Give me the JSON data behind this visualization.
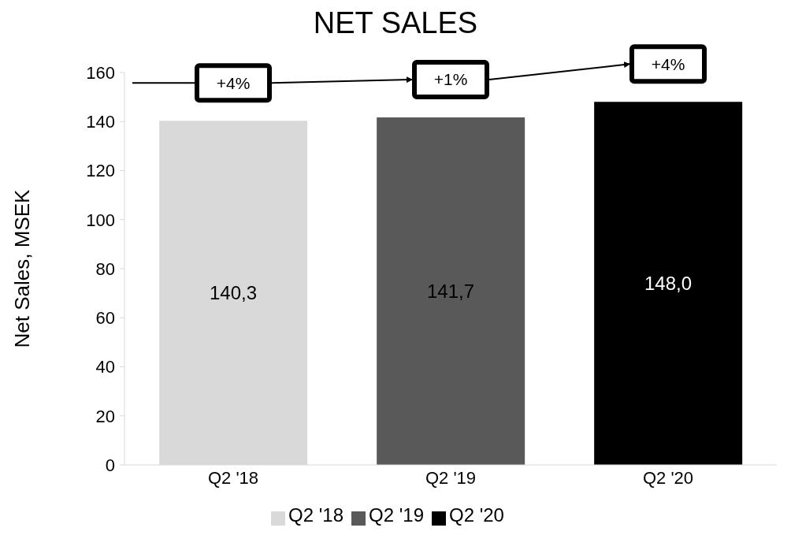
{
  "chart_data": {
    "type": "bar",
    "title": "NET SALES",
    "ylabel": "Net Sales, MSEK",
    "categories": [
      "Q2 '18",
      "Q2 '19",
      "Q2 '20"
    ],
    "stacked": true,
    "series": [
      {
        "name": "Q2 '18",
        "color": "#d9d9d9",
        "values": [
          140.3,
          null,
          null
        ],
        "value_labels": [
          "140,3",
          null,
          null
        ]
      },
      {
        "name": "Q2 '19",
        "color": "#595959",
        "values": [
          null,
          141.7,
          null
        ],
        "value_labels": [
          null,
          "141,7",
          null
        ]
      },
      {
        "name": "Q2 '20",
        "color": "#000000",
        "values": [
          null,
          null,
          148.0
        ],
        "value_labels": [
          null,
          null,
          "148,0"
        ]
      }
    ],
    "ylim": [
      0,
      160
    ],
    "yticks": [
      0,
      20,
      40,
      60,
      80,
      100,
      120,
      140,
      160
    ],
    "annotations": [
      "+4%",
      "+1%",
      "+4%"
    ],
    "legend": "bottom",
    "grid": false
  }
}
